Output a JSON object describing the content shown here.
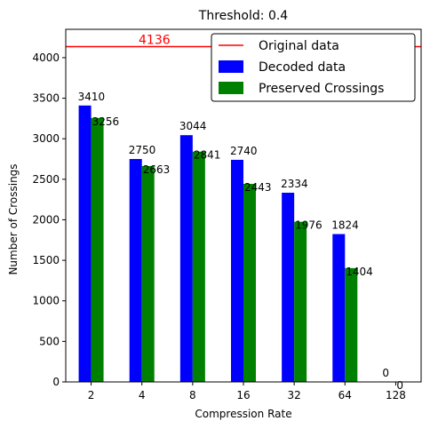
{
  "chart_data": {
    "type": "bar",
    "title": "Threshold: 0.4",
    "xlabel": "Compression Rate",
    "ylabel": "Number of Crossings",
    "categories": [
      "2",
      "4",
      "8",
      "16",
      "32",
      "64",
      "128"
    ],
    "series": [
      {
        "name": "Decoded data",
        "color": "#0000ff",
        "values": [
          3410,
          2750,
          3044,
          2740,
          2334,
          1824,
          0
        ]
      },
      {
        "name": "Preserved Crossings",
        "color": "#008000",
        "values": [
          3256,
          2663,
          2841,
          2443,
          1976,
          1404,
          0
        ]
      }
    ],
    "reference_line": {
      "name": "Original data",
      "value": 4136,
      "label": "4136",
      "color": "#ff0000"
    },
    "ylim": [
      0,
      4350
    ],
    "yticks": [
      0,
      500,
      1000,
      1500,
      2000,
      2500,
      3000,
      3500,
      4000
    ],
    "legend_position": "top-right",
    "grid": false
  }
}
